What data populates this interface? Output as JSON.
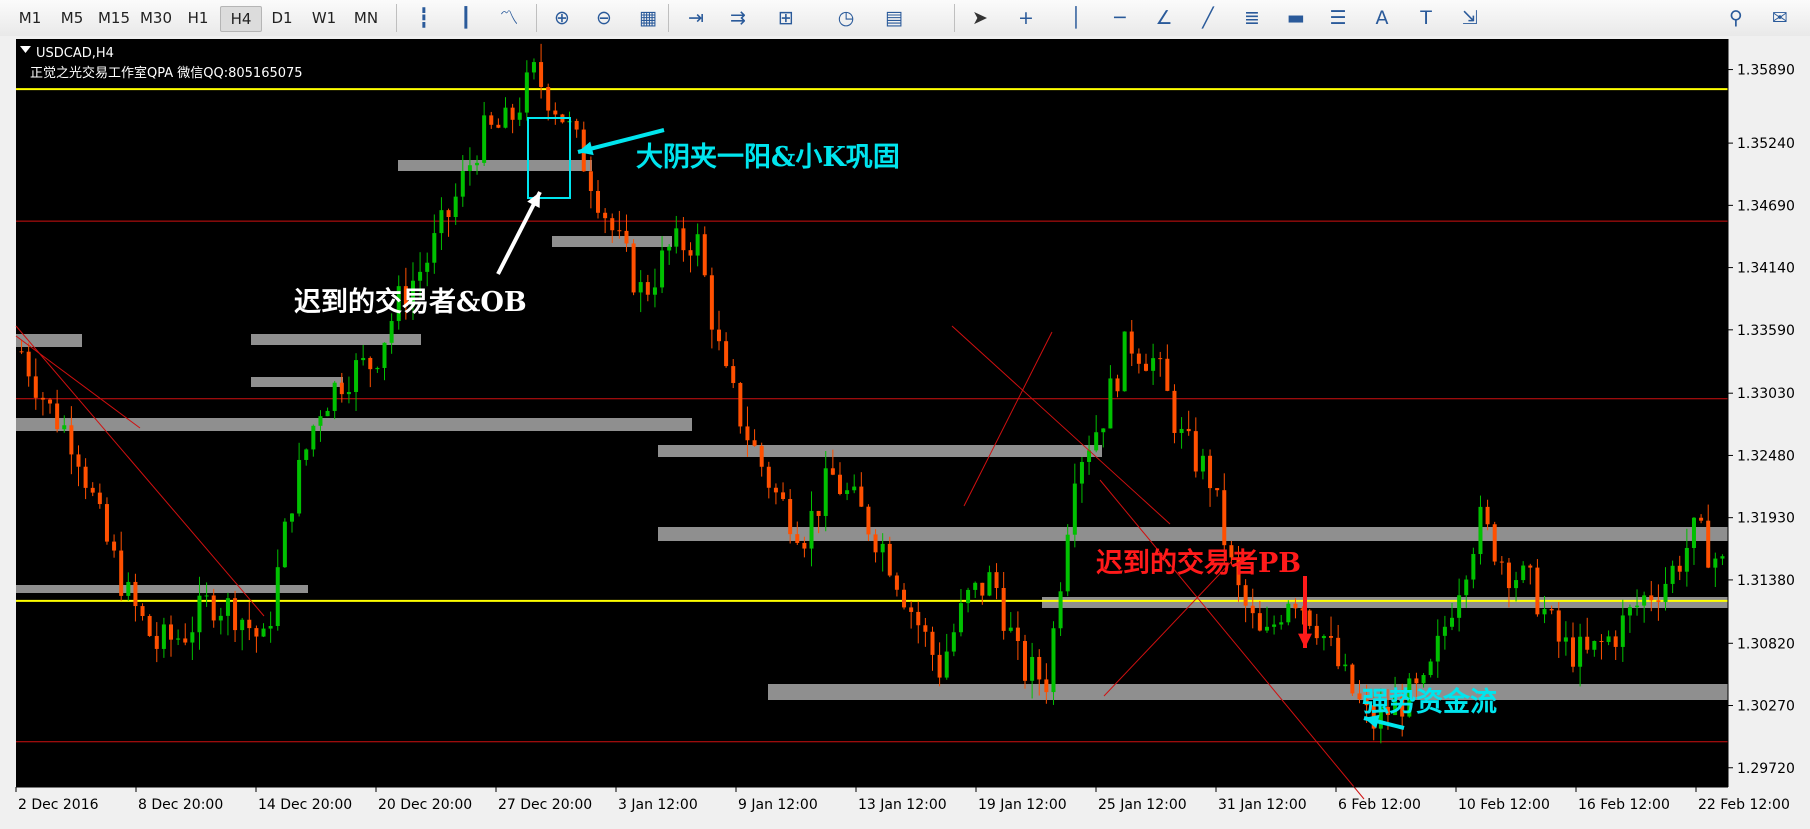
{
  "toolbar": {
    "timeframes": [
      "M1",
      "M5",
      "M15",
      "M30",
      "H1",
      "H4",
      "D1",
      "W1",
      "MN"
    ],
    "active_timeframe": "H4",
    "icons": [
      "bar-chart-icon",
      "candlestick-icon",
      "line-chart-icon",
      "zoom-in-icon",
      "zoom-out-icon",
      "tile-windows-icon",
      "chart-shift-icon",
      "autoscroll-icon",
      "indicators-icon",
      "periods-clock-icon",
      "templates-icon",
      "cursor-icon",
      "crosshair-icon",
      "vertical-line-icon",
      "horizontal-line-icon",
      "trendline-angle-icon",
      "trendline-icon",
      "fibonacci-icon",
      "rectangle-icon",
      "fibo-channel-icon",
      "text-icon",
      "text-label-icon",
      "arrows-icon",
      "search-icon",
      "chat-icon"
    ]
  },
  "chart": {
    "symbol_label": "USDCAD,H4",
    "watermark": "正觉之光交易工作室QPA 微信QQ:805165075",
    "colors": {
      "background": "#000000",
      "bull": "#00c000",
      "bear": "#ff5000",
      "zone": "#8f8f8f",
      "yellow_line": "#ffff00",
      "red_line": "#d01010",
      "cyan_note": "#00e5ee",
      "red_note": "#ff1a1a",
      "white_note": "#ffffff"
    },
    "annotations": {
      "top_right": "大阴夹一阳&小K巩固",
      "late_trader_ob": "迟到的交易者&OB",
      "late_trader_pb": "迟到的交易者PB",
      "strong_flow": "强势资金流"
    }
  },
  "chart_data": {
    "type": "candlestick",
    "symbol": "USDCAD",
    "timeframe": "H4",
    "y_ticks": [
      "1.35890",
      "1.35240",
      "1.34690",
      "1.34140",
      "1.33590",
      "1.33030",
      "1.32480",
      "1.31930",
      "1.31380",
      "1.30820",
      "1.30270",
      "1.29720"
    ],
    "ylim": [
      1.2955,
      1.3616
    ],
    "x_ticks": [
      "2 Dec 2016",
      "8 Dec 20:00",
      "14 Dec 20:00",
      "20 Dec 20:00",
      "27 Dec 20:00",
      "3 Jan 12:00",
      "9 Jan 12:00",
      "13 Jan 12:00",
      "19 Jan 12:00",
      "25 Jan 12:00",
      "31 Jan 12:00",
      "6 Feb 12:00",
      "10 Feb 12:00",
      "16 Feb 12:00",
      "22 Feb 12:00"
    ],
    "horizontal_lines": [
      {
        "price": 1.35717,
        "label": "1.35717",
        "color": "yellow"
      },
      {
        "price": 1.34551,
        "label": "1.34551",
        "color": "red"
      },
      {
        "price": 1.32981,
        "label": "1.32981",
        "color": "red"
      },
      {
        "price": 1.31195,
        "label": "1.31195",
        "color": "yellow"
      },
      {
        "price": 1.2995,
        "label": "1.29950",
        "color": "red"
      }
    ],
    "price_path": [
      1.334,
      1.329,
      1.326,
      1.318,
      1.312,
      1.308,
      1.309,
      1.312,
      1.311,
      1.308,
      1.321,
      1.329,
      1.332,
      1.333,
      1.3385,
      1.342,
      1.347,
      1.353,
      1.354,
      1.3585,
      1.355,
      1.35,
      1.344,
      1.339,
      1.343,
      1.344,
      1.332,
      1.326,
      1.321,
      1.318,
      1.323,
      1.32,
      1.3165,
      1.311,
      1.306,
      1.312,
      1.314,
      1.306,
      1.305,
      1.324,
      1.328,
      1.335,
      1.333,
      1.326,
      1.323,
      1.313,
      1.308,
      1.313,
      1.31,
      1.305,
      1.301,
      1.303,
      1.304,
      1.312,
      1.319,
      1.315,
      1.313,
      1.308,
      1.307,
      1.309,
      1.312,
      1.314,
      1.318,
      1.315
    ]
  }
}
